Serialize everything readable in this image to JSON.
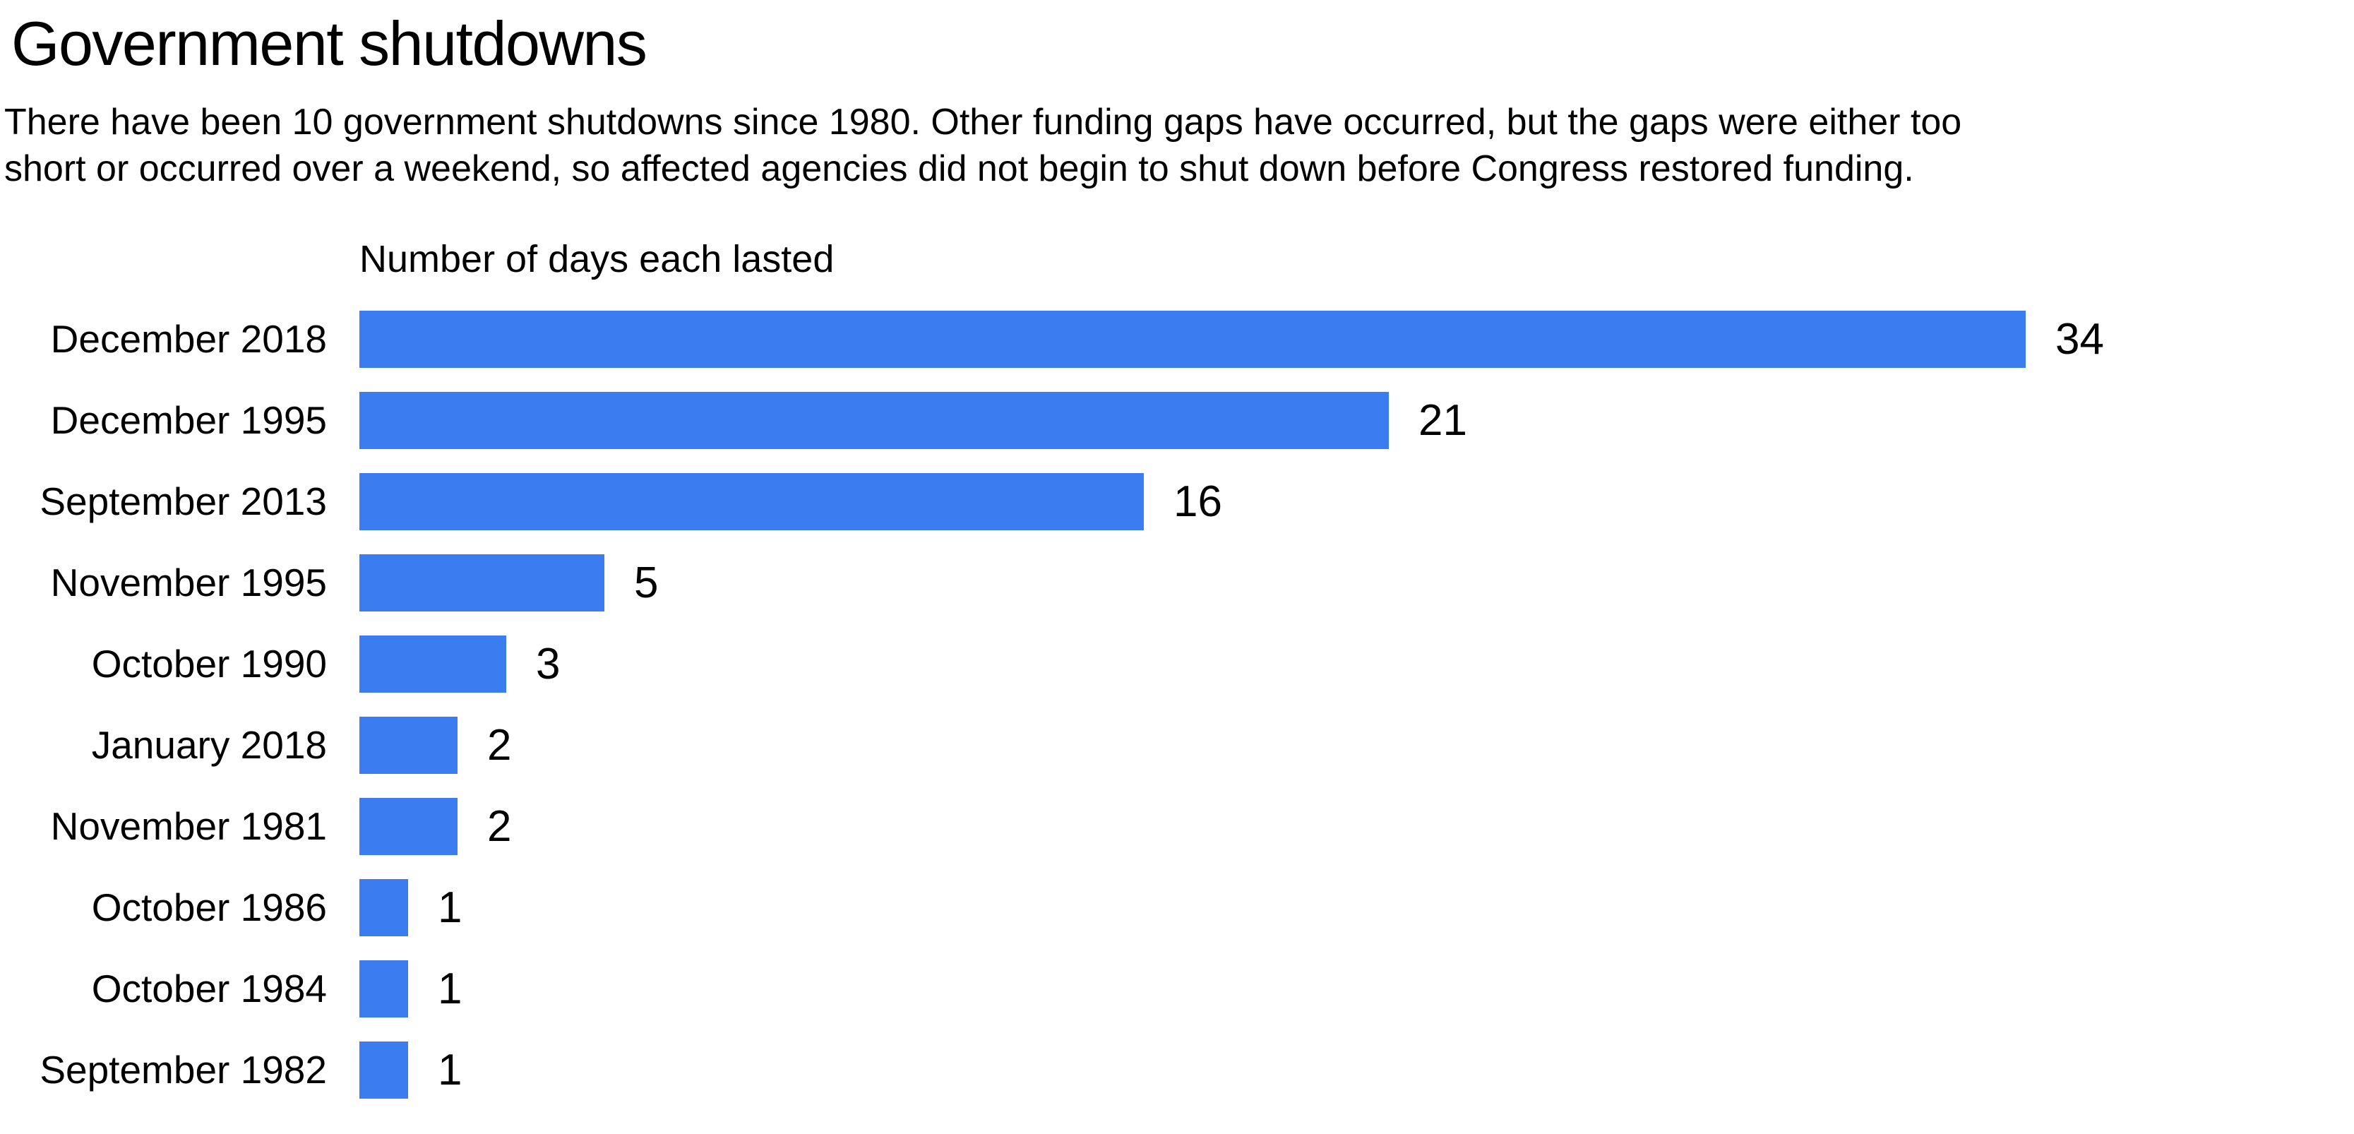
{
  "chart_data": {
    "type": "bar",
    "orientation": "horizontal",
    "title": "Government shutdowns",
    "subtitle": "There have been 10 government shutdowns since 1980. Other funding gaps have occurred, but the gaps were either too short or occurred over a weekend, so affected agencies did not begin to shut down before Congress restored funding.",
    "subtitle_lines": [
      "There have been 10 government shutdowns since 1980. Other funding gaps have occurred, but the gaps were either too",
      "short or occurred over a weekend, so affected agencies did not begin to shut down before Congress restored funding."
    ],
    "axis_title": "Number of days each lasted",
    "categories": [
      "December 2018",
      "December 1995",
      "September 2013",
      "November 1995",
      "October 1990",
      "January 2018",
      "November 1981",
      "October 1986",
      "October 1984",
      "September 1982"
    ],
    "values": [
      34,
      21,
      16,
      5,
      3,
      2,
      2,
      1,
      1,
      1
    ],
    "xlabel": "Number of days each lasted",
    "ylabel": "",
    "xlim": [
      0,
      34
    ],
    "grid": false,
    "legend": "none",
    "data_labels": true,
    "bar_color": "#3B7DF1",
    "text_color": "#000000",
    "background": "#FFFFFF"
  }
}
